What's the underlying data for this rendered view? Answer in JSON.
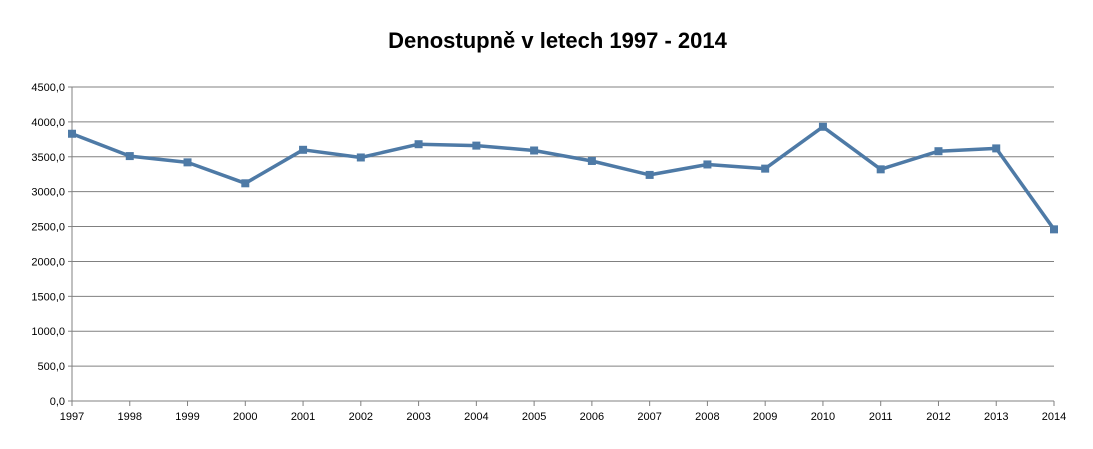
{
  "chart_data": {
    "type": "line",
    "title": "Denostupně v letech 1997 - 2014",
    "categories": [
      "1997",
      "1998",
      "1999",
      "2000",
      "2001",
      "2002",
      "2003",
      "2004",
      "2005",
      "2006",
      "2007",
      "2008",
      "2009",
      "2010",
      "2011",
      "2012",
      "2013",
      "2014"
    ],
    "series": [
      {
        "values": [
          3830,
          3510,
          3420,
          3120,
          3600,
          3490,
          3680,
          3660,
          3590,
          3440,
          3240,
          3390,
          3330,
          3930,
          3320,
          3580,
          3620,
          2460
        ],
        "color": "#4e7aa6"
      }
    ],
    "xlabel": "",
    "ylabel": "",
    "ylim": [
      0,
      4500
    ],
    "yticks": [
      0,
      500,
      1000,
      1500,
      2000,
      2500,
      3000,
      3500,
      4000,
      4500
    ],
    "ytick_labels": [
      "0,0",
      "500,0",
      "1000,0",
      "1500,0",
      "2000,0",
      "2500,0",
      "3000,0",
      "3500,0",
      "4000,0",
      "4500,0"
    ],
    "grid": true,
    "gridline_color": "#808080",
    "legend": "none",
    "marker": "square"
  }
}
